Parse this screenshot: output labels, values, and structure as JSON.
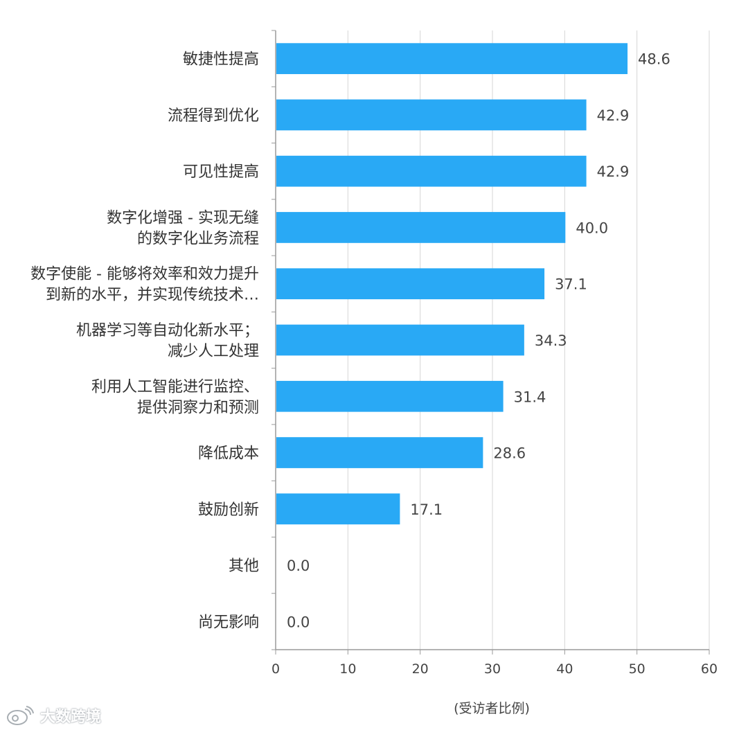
{
  "chart_data": {
    "type": "bar",
    "orientation": "horizontal",
    "categories": [
      [
        "敏捷性提高"
      ],
      [
        "流程得到优化"
      ],
      [
        "可见性提高"
      ],
      [
        "数字化增强 - 实现无缝",
        "的数字化业务流程"
      ],
      [
        "数字使能 - 能够将效率和效力提升",
        "到新的水平，并实现传统技术…"
      ],
      [
        "机器学习等自动化新水平；",
        "减少人工处理"
      ],
      [
        "利用人工智能进行监控、",
        "提供洞察力和预测"
      ],
      [
        "降低成本"
      ],
      [
        "鼓励创新"
      ],
      [
        "其他"
      ],
      [
        "尚无影响"
      ]
    ],
    "values": [
      48.6,
      42.9,
      42.9,
      40.0,
      37.1,
      34.3,
      31.4,
      28.6,
      17.1,
      0.0,
      0.0
    ],
    "value_labels": [
      "48.6",
      "42.9",
      "42.9",
      "40.0",
      "37.1",
      "34.3",
      "31.4",
      "28.6",
      "17.1",
      "0.0",
      "0.0"
    ],
    "xlim": [
      0,
      60
    ],
    "xticks": [
      "0",
      "10",
      "20",
      "30",
      "40",
      "50",
      "60"
    ],
    "xlabel": "(受访者比例)",
    "grid": "vertical",
    "bar_color": "#29a9f5"
  },
  "watermark": {
    "text": "大数跨境"
  }
}
